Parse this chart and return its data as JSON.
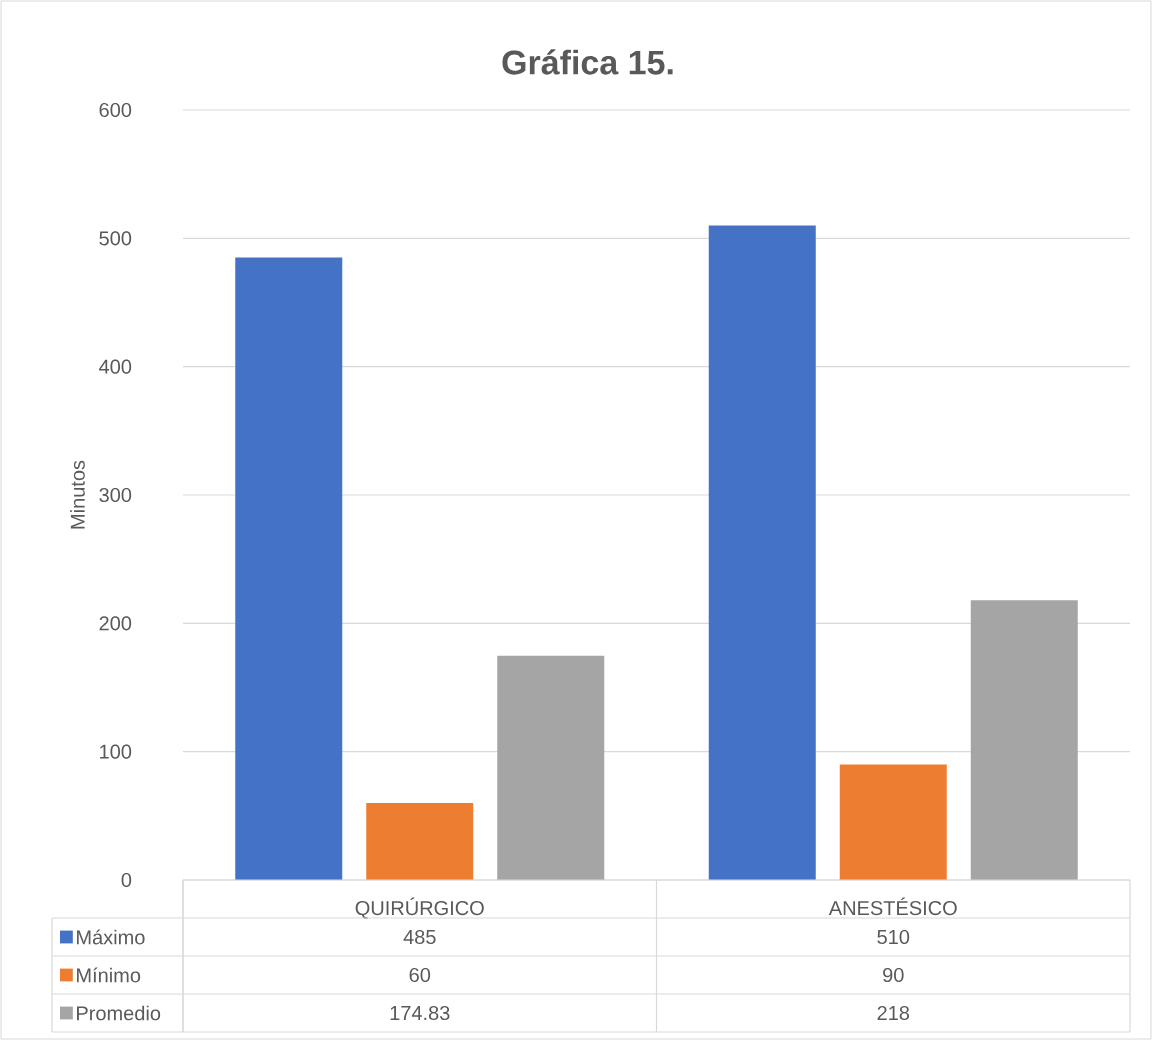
{
  "chart_data": {
    "type": "bar",
    "title": "Gráfica 15.",
    "ylabel": "Minutos",
    "categories": [
      "QUIRÚRGICO",
      "ANESTÉSICO"
    ],
    "series": [
      {
        "name": "Máximo",
        "color": "#4472c4",
        "values": [
          485,
          510
        ]
      },
      {
        "name": "Mínimo",
        "color": "#ed7d31",
        "values": [
          60,
          90
        ]
      },
      {
        "name": "Promedio",
        "color": "#a5a5a5",
        "values": [
          174.83,
          218
        ]
      }
    ],
    "ylim": [
      0,
      600
    ],
    "yticks": [
      0,
      100,
      200,
      300,
      400,
      500,
      600
    ],
    "grid": "y",
    "legend": "bottom",
    "data_labels": true
  }
}
